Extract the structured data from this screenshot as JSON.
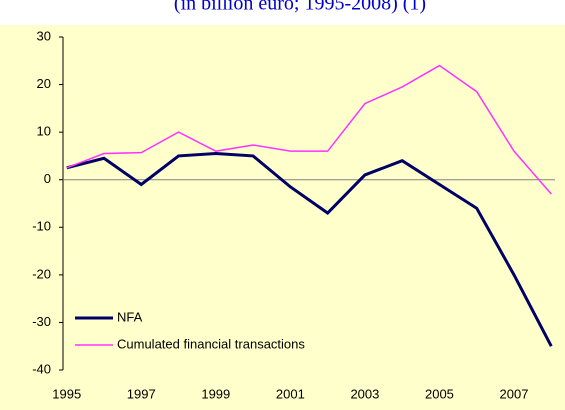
{
  "chart_data": {
    "type": "line",
    "subtitle": "(in billion euro; 1995-2008) (1)",
    "x": [
      1995,
      1996,
      1997,
      1998,
      1999,
      2000,
      2001,
      2002,
      2003,
      2004,
      2005,
      2006,
      2007,
      2008
    ],
    "series": [
      {
        "name": "NFA",
        "color": "#000066",
        "values": [
          2.5,
          4.5,
          -1,
          5,
          5.5,
          5,
          -1.5,
          -7,
          1,
          4,
          -1,
          -6,
          -20,
          -35
        ]
      },
      {
        "name": "Cumulated financial transactions",
        "color": "#ff33ff",
        "values": [
          2.5,
          5.5,
          5.7,
          10,
          6,
          7.3,
          6,
          6,
          16,
          19.5,
          24,
          18.5,
          6,
          -3
        ]
      }
    ],
    "xlim": [
      1994.9,
      2008.1
    ],
    "xticks": [
      1995,
      1997,
      1999,
      2001,
      2003,
      2005,
      2007
    ],
    "ylim": [
      -40,
      30
    ],
    "yticks": [
      -40,
      -30,
      -20,
      -10,
      0,
      10,
      20,
      30
    ],
    "grid": false,
    "legend": "lower-left"
  }
}
